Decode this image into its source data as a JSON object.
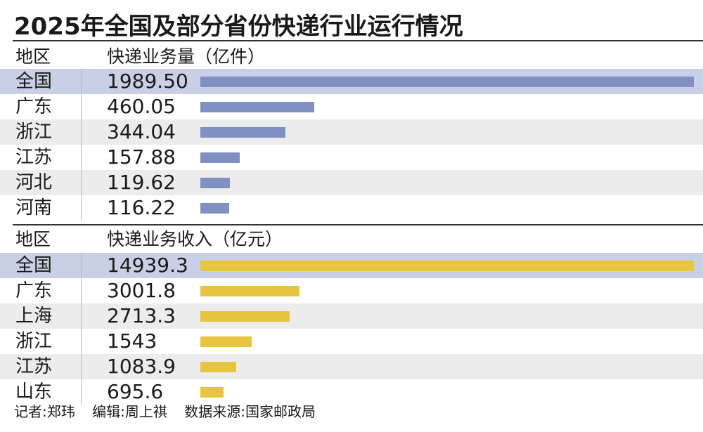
{
  "title": "2025年全国及部分省份快递行业运行情况",
  "chart_data": [
    {
      "type": "bar",
      "orientation": "horizontal",
      "column_headers": {
        "region": "地区",
        "value": "快递业务量（亿件）"
      },
      "categories": [
        "全国",
        "广东",
        "浙江",
        "江苏",
        "河北",
        "河南"
      ],
      "labels": [
        "1989.50",
        "460.05",
        "344.04",
        "157.88",
        "119.62",
        "116.22"
      ],
      "values": [
        1989.5,
        460.05,
        344.04,
        157.88,
        119.62,
        116.22
      ],
      "color": "#8090c2"
    },
    {
      "type": "bar",
      "orientation": "horizontal",
      "column_headers": {
        "region": "地区",
        "value": "快递业务收入（亿元）"
      },
      "categories": [
        "全国",
        "广东",
        "上海",
        "浙江",
        "江苏",
        "山东"
      ],
      "labels": [
        "14939.3",
        "3001.8",
        "2713.3",
        "1543",
        "1083.9",
        "695.6"
      ],
      "values": [
        14939.3,
        3001.8,
        2713.3,
        1543,
        1083.9,
        695.6
      ],
      "color": "#e8c53e"
    }
  ],
  "footer": {
    "reporter": "记者:郑玮",
    "editor": "编辑:周上祺",
    "source": "数据来源:国家邮政局"
  }
}
